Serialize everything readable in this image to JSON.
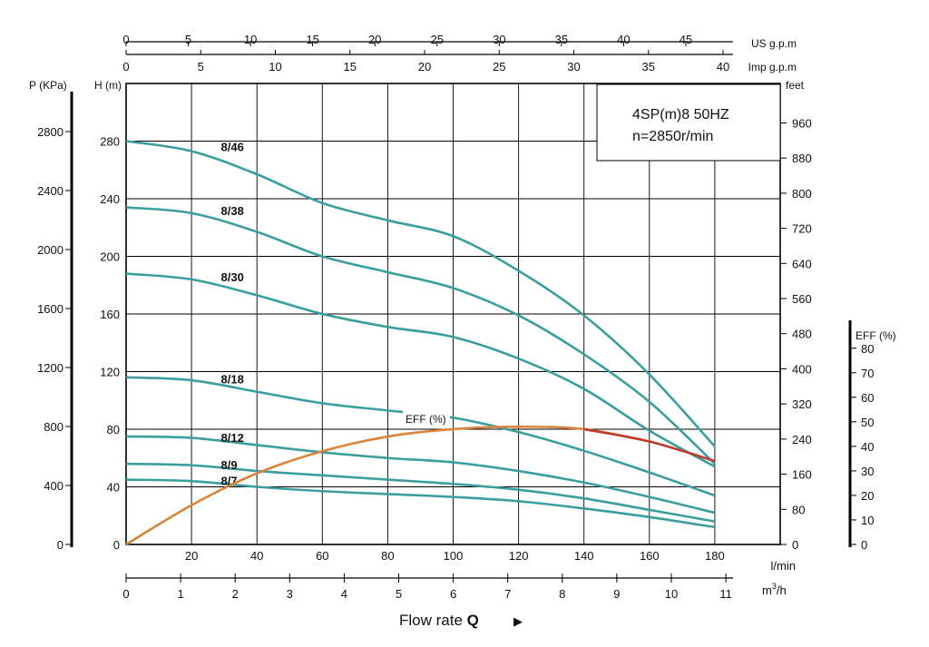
{
  "chart_data": {
    "type": "line",
    "title_lines": [
      "4SP(m)8  50HZ",
      "n=2850r/min"
    ],
    "xlabel_prefix": "Flow rate ",
    "xlabel_bold": "Q",
    "xlabel_arrow": "▶",
    "units": {
      "us_gpm": "US g.p.m",
      "imp_gpm": "Imp g.p.m",
      "pressure": "P (KPa)",
      "head": "H (m)",
      "feet": "feet",
      "eff": "EFF (%)",
      "lmin": "l/min",
      "m3h_base": "m",
      "m3h_sup": "3",
      "m3h_tail": "/h"
    },
    "x_lmin": {
      "range": [
        0,
        200
      ],
      "ticks": [
        0,
        20,
        40,
        60,
        80,
        100,
        120,
        140,
        160,
        180
      ]
    },
    "x_m3h": {
      "ticks": [
        0,
        1,
        2,
        3,
        4,
        5,
        6,
        7,
        8,
        9,
        10,
        11
      ]
    },
    "x_us_gpm": {
      "ticks": [
        0,
        5,
        10,
        15,
        20,
        25,
        30,
        35,
        40,
        45
      ]
    },
    "x_imp_gpm": {
      "ticks": [
        0,
        5,
        10,
        15,
        20,
        25,
        30,
        35,
        40
      ]
    },
    "y_head": {
      "range": [
        0,
        320
      ],
      "ticks": [
        0,
        40,
        80,
        120,
        160,
        200,
        240,
        280
      ]
    },
    "y_pressure": {
      "ticks": [
        0,
        400,
        800,
        1200,
        1600,
        2000,
        2400,
        2800
      ]
    },
    "y_feet": {
      "ticks": [
        0,
        80,
        160,
        240,
        320,
        400,
        480,
        560,
        640,
        720,
        800,
        880,
        960
      ]
    },
    "y_eff": {
      "range": [
        0,
        80
      ],
      "ticks": [
        0,
        10,
        20,
        30,
        40,
        50,
        60,
        70,
        80
      ]
    },
    "x": [
      0,
      20,
      40,
      60,
      80,
      100,
      120,
      140,
      160,
      180
    ],
    "series": [
      {
        "name": "8/46",
        "label_x": 29,
        "values": [
          280,
          273,
          257,
          237,
          225,
          214,
          190,
          159,
          118,
          68
        ]
      },
      {
        "name": "8/38",
        "label_x": 29,
        "values": [
          234,
          230,
          217,
          200,
          189,
          178,
          159,
          132,
          99,
          56
        ]
      },
      {
        "name": "8/30",
        "label_x": 29,
        "values": [
          188,
          184,
          173,
          160,
          151,
          144,
          129,
          108,
          79,
          54
        ]
      },
      {
        "name": "8/18",
        "label_x": 29,
        "values": [
          116,
          114,
          106,
          98,
          93,
          88,
          78,
          65,
          50,
          34
        ]
      },
      {
        "name": "8/12",
        "label_x": 29,
        "values": [
          75,
          74,
          69,
          64,
          60,
          57,
          51,
          43,
          33,
          22
        ]
      },
      {
        "name": "8/9",
        "label_x": 29,
        "values": [
          56,
          55,
          51,
          48,
          45,
          42,
          38,
          32,
          24,
          16
        ]
      },
      {
        "name": "8/7",
        "label_x": 29,
        "values": [
          45,
          44,
          40,
          37,
          35,
          33,
          30,
          25,
          19,
          12
        ]
      }
    ],
    "efficiency": {
      "label": "EFF (%)",
      "x": [
        0,
        20,
        40,
        60,
        80,
        100,
        120,
        140,
        160,
        180
      ],
      "values": [
        0,
        16,
        29,
        38,
        44,
        47,
        48,
        47,
        42,
        34
      ]
    },
    "colors": {
      "curves": "#3a9e9e",
      "efficiency": "#d9843a",
      "efficiency_tail": "#c0392b",
      "grid": "#000000"
    }
  }
}
